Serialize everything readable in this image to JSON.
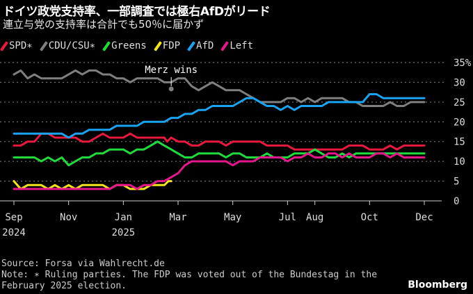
{
  "title": "ドイツ政党支持率、一部調査では極右AfDがリード",
  "subtitle": "連立与党の支持率は合計でも50％に届かず",
  "source": "Source: Forsa via Wahlrecht.de",
  "note": "Note: ∗ Ruling parties. The FDP was voted out of the Bundestag in the February 2025 election.",
  "note_line1": "Note: ∗ Ruling parties. The FDP was voted out of the Bundestag in the",
  "note_line2": "February 2025 election.",
  "brand": "Bloomberg",
  "chart_data": {
    "type": "line",
    "title": "ドイツ政党支持率、一部調査では極右AfDがリード",
    "subtitle": "連立与党の支持率は合計でも50％に届かず",
    "xlabel": "",
    "ylabel": "",
    "x_unit": "months since Sep 2024",
    "xlim": [
      0,
      15
    ],
    "ylim": [
      0,
      35
    ],
    "y_ticks": [
      0,
      5,
      10,
      15,
      20,
      25,
      30,
      35
    ],
    "y_tick_labels": [
      "0",
      "5",
      "10",
      "15",
      "20",
      "25",
      "30",
      "35%"
    ],
    "x_ticks": [
      {
        "x": 0,
        "label": "Sep",
        "sub": "2024"
      },
      {
        "x": 2,
        "label": "Nov",
        "sub": ""
      },
      {
        "x": 4,
        "label": "Jan",
        "sub": "2025"
      },
      {
        "x": 6,
        "label": "Mar",
        "sub": ""
      },
      {
        "x": 8,
        "label": "May",
        "sub": ""
      },
      {
        "x": 10,
        "label": "Jul",
        "sub": ""
      },
      {
        "x": 11,
        "label": "Aug",
        "sub": ""
      },
      {
        "x": 13,
        "label": "Oct",
        "sub": ""
      },
      {
        "x": 15,
        "label": "Dec",
        "sub": ""
      }
    ],
    "grid": true,
    "legend_position": "top-left",
    "annotations": [
      {
        "text": "Merz wins",
        "x": 5.75,
        "y": 28.5
      }
    ],
    "series": [
      {
        "name": "SPD∗",
        "color": "#e8193c",
        "x": [
          0,
          0.25,
          0.5,
          0.75,
          1,
          1.25,
          1.5,
          1.75,
          2,
          2.25,
          2.5,
          2.75,
          3,
          3.25,
          3.5,
          3.75,
          4,
          4.25,
          4.5,
          4.75,
          5,
          5.25,
          5.5,
          5.6,
          5.75,
          6,
          6.25,
          6.5,
          6.75,
          7,
          7.25,
          7.5,
          7.75,
          8,
          8.25,
          8.5,
          8.75,
          9,
          9.25,
          9.5,
          9.75,
          10,
          10.25,
          10.5,
          10.75,
          11,
          11.25,
          11.5,
          11.75,
          12,
          12.25,
          12.5,
          12.75,
          13,
          13.25,
          13.5,
          13.75,
          14,
          14.25,
          14.5,
          14.75,
          15
        ],
        "y": [
          14,
          14,
          15,
          15,
          17,
          17,
          16,
          16,
          16,
          16,
          15,
          15,
          16,
          17,
          16,
          16,
          16,
          17,
          16,
          16,
          16,
          16,
          16,
          15,
          16,
          15,
          15,
          14,
          14,
          15,
          15,
          15,
          14,
          15,
          15,
          15,
          15,
          15,
          14,
          14,
          14,
          14,
          13,
          13,
          13,
          13,
          13,
          13,
          13,
          13,
          14,
          14,
          14,
          13,
          13,
          13,
          14,
          13,
          14,
          14,
          14,
          14
        ]
      },
      {
        "name": "CDU/CSU∗",
        "color": "#7f7f7f",
        "x": [
          0,
          0.25,
          0.5,
          0.75,
          1,
          1.25,
          1.5,
          1.75,
          2,
          2.25,
          2.5,
          2.75,
          3,
          3.25,
          3.5,
          3.75,
          4,
          4.25,
          4.5,
          4.75,
          5,
          5.25,
          5.5,
          5.75,
          6,
          6.25,
          6.5,
          6.75,
          7,
          7.25,
          7.5,
          7.75,
          8,
          8.25,
          8.5,
          8.75,
          9,
          9.25,
          9.5,
          9.75,
          10,
          10.25,
          10.5,
          10.75,
          11,
          11.25,
          11.5,
          11.75,
          12,
          12.25,
          12.5,
          12.75,
          13,
          13.25,
          13.5,
          13.75,
          14,
          14.25,
          14.5,
          14.75,
          15
        ],
        "y": [
          32,
          33,
          31,
          32,
          31,
          31,
          31,
          31,
          32,
          33,
          32,
          33,
          33,
          32,
          32,
          31,
          31,
          30,
          31,
          31,
          31,
          31,
          30,
          30,
          31,
          31,
          29,
          28,
          29,
          30,
          29,
          28,
          28,
          28,
          27,
          26,
          25,
          25,
          25,
          25,
          26,
          26,
          25,
          26,
          25,
          26,
          26,
          26,
          26,
          25,
          25,
          24,
          24,
          24,
          24,
          25,
          24,
          24,
          25,
          25,
          25
        ]
      },
      {
        "name": "Greens",
        "color": "#1fdc3c",
        "x": [
          0,
          0.25,
          0.5,
          0.75,
          1,
          1.25,
          1.5,
          1.75,
          2,
          2.25,
          2.5,
          2.75,
          3,
          3.25,
          3.5,
          3.75,
          4,
          4.25,
          4.5,
          4.75,
          5,
          5.25,
          5.5,
          5.75,
          6,
          6.25,
          6.5,
          6.75,
          7,
          7.25,
          7.5,
          7.75,
          8,
          8.25,
          8.5,
          8.75,
          9,
          9.25,
          9.5,
          9.75,
          10,
          10.25,
          10.5,
          10.75,
          11,
          11.25,
          11.5,
          11.75,
          12,
          12.25,
          12.5,
          12.75,
          13,
          13.25,
          13.5,
          13.75,
          14,
          14.25,
          14.5,
          14.75,
          15
        ],
        "y": [
          11,
          11,
          11,
          11,
          10,
          11,
          10,
          11,
          9,
          10,
          11,
          11,
          12,
          12,
          13,
          13,
          13,
          12,
          13,
          13,
          14,
          15,
          14,
          13,
          12,
          11,
          11,
          12,
          12,
          12,
          12,
          11,
          12,
          12,
          11,
          11,
          11,
          12,
          11,
          11,
          11,
          12,
          12,
          12,
          13,
          12,
          11,
          11,
          12,
          11,
          12,
          12,
          12,
          12,
          12,
          12,
          12,
          12,
          12,
          12,
          12
        ]
      },
      {
        "name": "FDP",
        "color": "#f2e51c",
        "x": [
          0,
          0.25,
          0.5,
          0.75,
          1,
          1.25,
          1.5,
          1.75,
          2,
          2.25,
          2.5,
          2.75,
          3,
          3.25,
          3.5,
          3.75,
          4,
          4.25,
          4.5,
          4.75,
          5,
          5.25,
          5.5,
          5.65,
          5.75
        ],
        "y": [
          5,
          3,
          4,
          4,
          4,
          3,
          4,
          3,
          4,
          3,
          4,
          4,
          4,
          4,
          3,
          4,
          4,
          3,
          3,
          3,
          4,
          4,
          4,
          5,
          5
        ]
      },
      {
        "name": "AfD",
        "color": "#1aa3f0",
        "x": [
          0,
          0.25,
          0.5,
          0.75,
          1,
          1.25,
          1.5,
          1.75,
          2,
          2.25,
          2.5,
          2.75,
          3,
          3.25,
          3.5,
          3.75,
          4,
          4.25,
          4.5,
          4.75,
          5,
          5.25,
          5.5,
          5.75,
          6,
          6.25,
          6.5,
          6.75,
          7,
          7.25,
          7.5,
          7.75,
          8,
          8.25,
          8.5,
          8.75,
          9,
          9.25,
          9.5,
          9.75,
          10,
          10.25,
          10.5,
          10.75,
          11,
          11.25,
          11.5,
          11.75,
          12,
          12.25,
          12.5,
          12.75,
          13,
          13.25,
          13.5,
          13.75,
          14,
          14.25,
          14.5,
          14.75,
          15
        ],
        "y": [
          17,
          17,
          17,
          17,
          17,
          17,
          17,
          17,
          16,
          17,
          17,
          18,
          18,
          18,
          18,
          19,
          19,
          19,
          19,
          20,
          20,
          20,
          20,
          21,
          21,
          22,
          22,
          23,
          23,
          24,
          24,
          24,
          24,
          25,
          26,
          26,
          25,
          24,
          24,
          23,
          24,
          23,
          24,
          24,
          24,
          24,
          25,
          25,
          25,
          25,
          25,
          25,
          27,
          27,
          26,
          26,
          26,
          26,
          26,
          26,
          26
        ]
      },
      {
        "name": "Left",
        "color": "#e5178a",
        "x": [
          0,
          0.25,
          0.5,
          0.75,
          1,
          1.25,
          1.5,
          1.75,
          2,
          2.25,
          2.5,
          2.75,
          3,
          3.25,
          3.5,
          3.75,
          4,
          4.25,
          4.5,
          4.75,
          5,
          5.25,
          5.5,
          5.75,
          6,
          6.25,
          6.5,
          6.75,
          7,
          7.25,
          7.5,
          7.75,
          8,
          8.25,
          8.5,
          8.75,
          9,
          9.25,
          9.5,
          9.75,
          10,
          10.25,
          10.5,
          10.75,
          11,
          11.25,
          11.5,
          11.75,
          12,
          12.25,
          12.5,
          12.75,
          13,
          13.25,
          13.5,
          13.75,
          14,
          14.25,
          14.5,
          14.75,
          15
        ],
        "y": [
          3,
          3,
          3,
          3,
          3,
          3,
          3,
          3,
          3,
          3,
          3,
          3,
          3,
          3,
          3,
          4,
          4,
          4,
          3,
          4,
          4,
          5,
          5,
          6,
          7,
          9,
          10,
          10,
          10,
          10,
          10,
          10,
          9,
          10,
          10,
          10,
          11,
          11,
          11,
          11,
          10,
          11,
          11,
          12,
          11,
          11,
          12,
          12,
          11,
          12,
          11,
          11,
          11,
          12,
          12,
          11,
          12,
          11,
          11,
          11,
          11
        ]
      }
    ]
  }
}
